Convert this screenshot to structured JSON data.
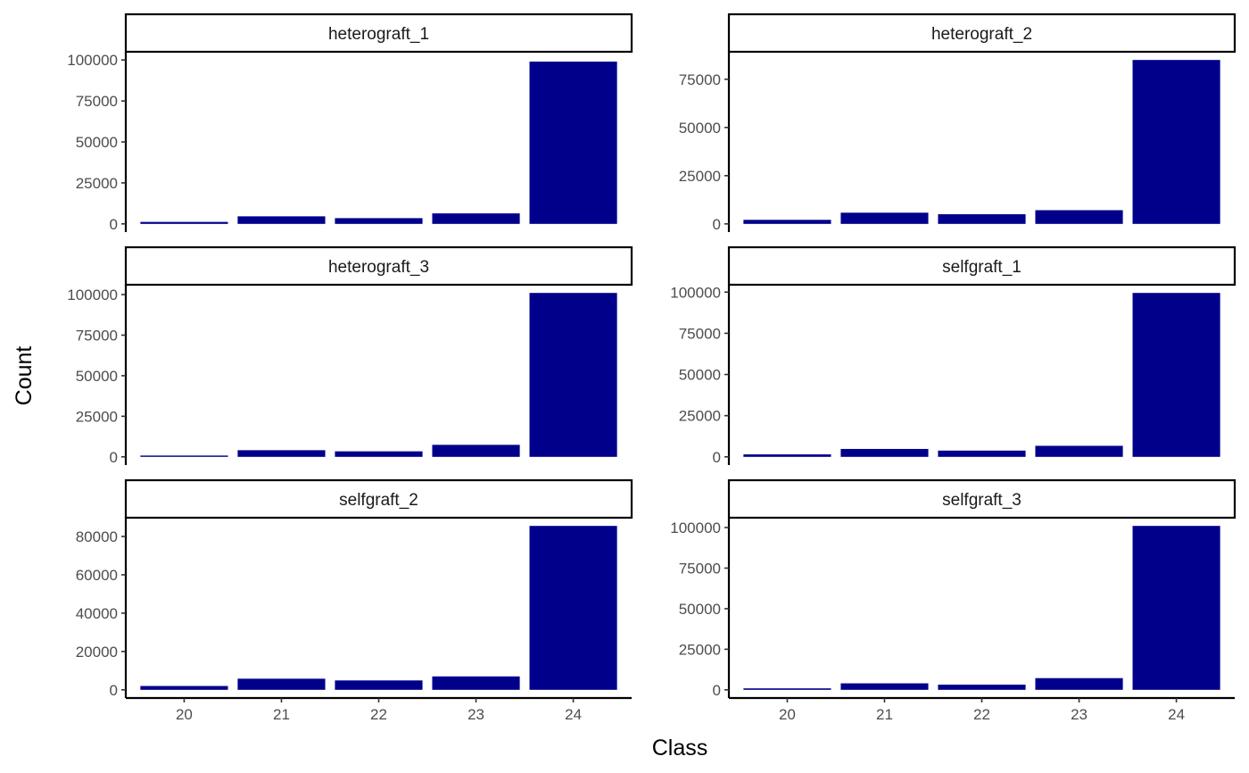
{
  "chart_data": {
    "type": "bar",
    "layout": "facet_wrap",
    "facet_columns": 2,
    "xlabel": "Class",
    "ylabel": "Count",
    "categories": [
      "20",
      "21",
      "22",
      "23",
      "24"
    ],
    "bar_color": "#00008B",
    "grid": false,
    "panels": [
      {
        "title": "heterograft_1",
        "values": [
          1200,
          4600,
          3500,
          6400,
          99000
        ],
        "yticks": [
          0,
          25000,
          50000,
          75000,
          100000
        ],
        "ylim": [
          0,
          100000
        ],
        "show_x_axis": false
      },
      {
        "title": "heterograft_2",
        "values": [
          2100,
          5800,
          5000,
          7100,
          85000
        ],
        "yticks": [
          0,
          25000,
          50000,
          75000
        ],
        "ylim": [
          0,
          85000
        ],
        "show_x_axis": false
      },
      {
        "title": "heterograft_3",
        "values": [
          800,
          4100,
          3400,
          7400,
          101000
        ],
        "yticks": [
          0,
          25000,
          50000,
          75000,
          100000
        ],
        "ylim": [
          0,
          101000
        ],
        "show_x_axis": false
      },
      {
        "title": "selfgraft_1",
        "values": [
          1500,
          4800,
          3800,
          6700,
          99500
        ],
        "yticks": [
          0,
          25000,
          50000,
          75000,
          100000
        ],
        "ylim": [
          0,
          99500
        ],
        "show_x_axis": false
      },
      {
        "title": "selfgraft_2",
        "values": [
          2000,
          5800,
          4900,
          7000,
          85500
        ],
        "yticks": [
          0,
          20000,
          40000,
          60000,
          80000
        ],
        "ylim": [
          0,
          85500
        ],
        "show_x_axis": true
      },
      {
        "title": "selfgraft_3",
        "values": [
          900,
          4000,
          3200,
          7200,
          101000
        ],
        "yticks": [
          0,
          25000,
          50000,
          75000,
          100000
        ],
        "ylim": [
          0,
          101000
        ],
        "show_x_axis": true
      }
    ]
  }
}
